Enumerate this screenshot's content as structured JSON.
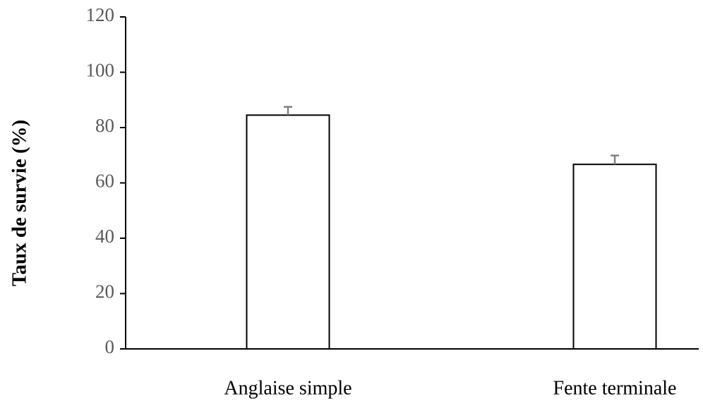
{
  "chart_data": {
    "type": "bar",
    "ylabel": "Taux de survie (%)",
    "categories": [
      "Anglaise simple",
      "Fente terminale"
    ],
    "values": [
      84.5,
      66.7
    ],
    "errors": [
      3,
      3.2
    ],
    "color": "#ffffff",
    "ylim": [
      0,
      120
    ],
    "yticks": [
      0,
      20,
      40,
      60,
      80,
      100,
      120
    ],
    "grid": false
  }
}
